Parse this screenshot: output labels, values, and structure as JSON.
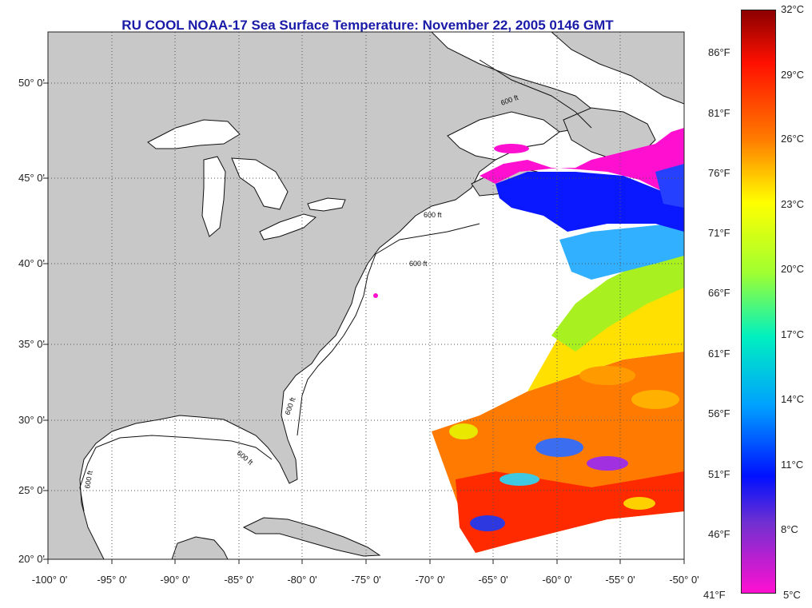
{
  "title": "RU COOL  NOAA-17  Sea Surface Temperature:  November 22, 2005 0146 GMT",
  "map": {
    "lat_labels": [
      "50° 0'",
      "45° 0'",
      "40° 0'",
      "35° 0'",
      "30° 0'",
      "25° 0'",
      "20° 0'"
    ],
    "lon_labels": [
      "-100° 0'",
      "-95° 0'",
      "-90° 0'",
      "-85° 0'",
      "-80° 0'",
      "-75° 0'",
      "-70° 0'",
      "-65° 0'",
      "-60° 0'",
      "-55° 0'",
      "-50° 0'"
    ],
    "contour_labels": [
      "600 ft",
      "600 ft",
      "600 ft",
      "600 ft",
      "600 ft",
      "600 ft"
    ],
    "colors": {
      "land": "#c8c8c8",
      "ocean": "#ffffff",
      "title": "#1a1aa8"
    }
  },
  "colorbar": {
    "celsius_labels": [
      "32°C",
      "29°C",
      "26°C",
      "23°C",
      "20°C",
      "17°C",
      "14°C",
      "11°C",
      "8°C",
      "5°C"
    ],
    "fahrenheit_labels": [
      "86°F",
      "81°F",
      "76°F",
      "71°F",
      "66°F",
      "61°F",
      "56°F",
      "51°F",
      "46°F",
      "41°F"
    ],
    "range_celsius": [
      5,
      32
    ]
  }
}
